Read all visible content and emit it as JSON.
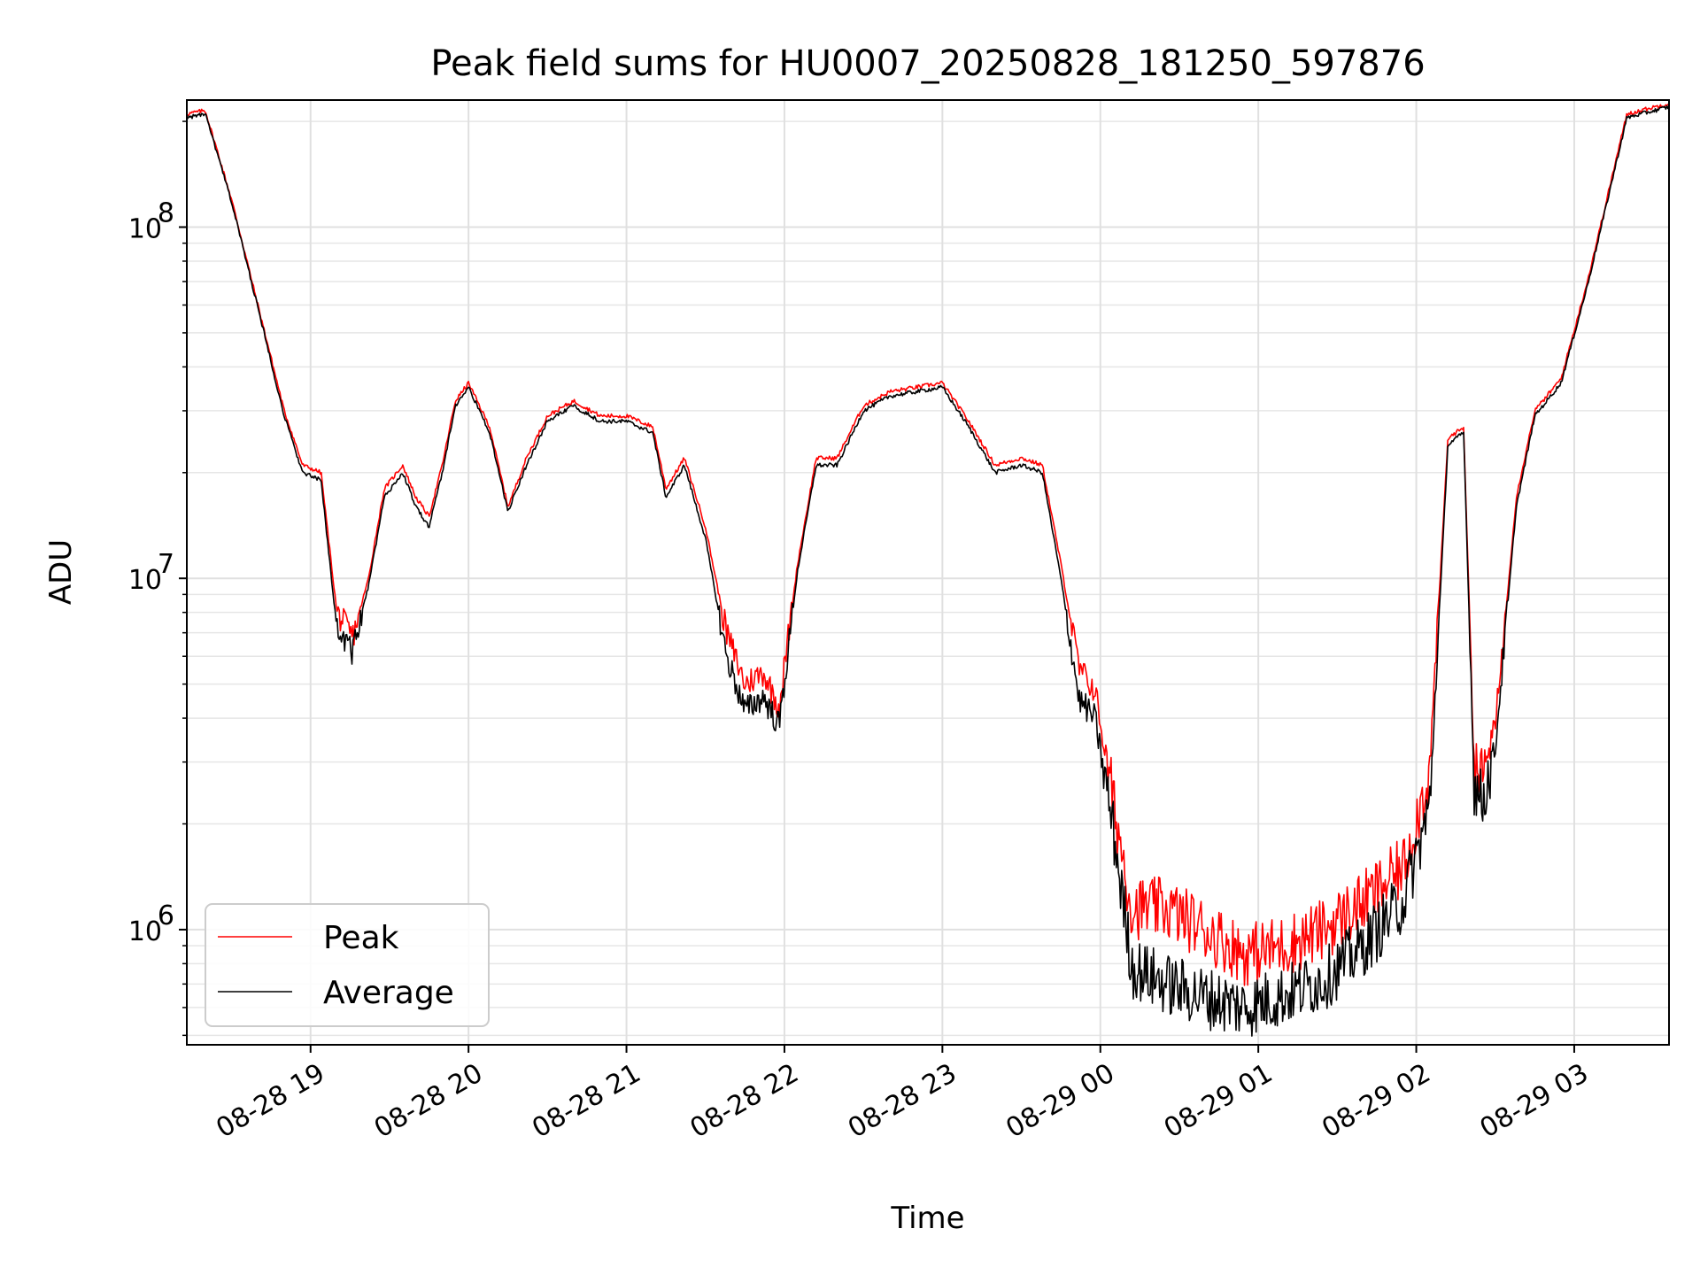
{
  "chart_data": {
    "type": "line",
    "title": "Peak field sums for HU0007_20250828_181250_597876",
    "xlabel": "Time",
    "ylabel": "ADU",
    "yscale": "log",
    "ylim": [
      470000,
      230000000
    ],
    "xlim": [
      "08-28 18:13",
      "08-29 03:36"
    ],
    "grid": true,
    "legend": {
      "placement": "lower-left",
      "entries": [
        "Peak",
        "Average"
      ]
    },
    "x_tick_labels": [
      "08-28 19",
      "08-28 20",
      "08-28 21",
      "08-28 22",
      "08-28 23",
      "08-29 00",
      "08-29 01",
      "08-29 02",
      "08-29 03"
    ],
    "y_tick_labels": [
      {
        "base": "10",
        "exp": "6",
        "value": 1000000
      },
      {
        "base": "10",
        "exp": "7",
        "value": 10000000
      },
      {
        "base": "10",
        "exp": "8",
        "value": 100000000
      }
    ],
    "colors": {
      "Peak": "#ff0000",
      "Average": "#000000"
    },
    "x": [
      "08-28 18:13",
      "08-28 18:20",
      "08-28 18:30",
      "08-28 18:40",
      "08-28 18:50",
      "08-28 18:57",
      "08-28 19:04",
      "08-28 19:10",
      "08-28 19:16",
      "08-28 19:22",
      "08-28 19:28",
      "08-28 19:35",
      "08-28 19:40",
      "08-28 19:45",
      "08-28 19:50",
      "08-28 19:55",
      "08-28 20:00",
      "08-28 20:08",
      "08-28 20:15",
      "08-28 20:22",
      "08-28 20:30",
      "08-28 20:40",
      "08-28 20:50",
      "08-28 21:00",
      "08-28 21:10",
      "08-28 21:15",
      "08-28 21:22",
      "08-28 21:30",
      "08-28 21:38",
      "08-28 21:45",
      "08-28 21:52",
      "08-28 21:58",
      "08-28 22:05",
      "08-28 22:12",
      "08-28 22:20",
      "08-28 22:30",
      "08-28 22:40",
      "08-28 22:50",
      "08-28 23:00",
      "08-28 23:10",
      "08-28 23:20",
      "08-28 23:30",
      "08-28 23:38",
      "08-28 23:45",
      "08-28 23:52",
      "08-28 23:58",
      "08-29 00:05",
      "08-29 00:12",
      "08-29 00:25",
      "08-29 00:40",
      "08-29 00:55",
      "08-29 01:10",
      "08-29 01:25",
      "08-29 01:40",
      "08-29 01:55",
      "08-29 02:05",
      "08-29 02:12",
      "08-29 02:18",
      "08-29 02:22",
      "08-29 02:25",
      "08-29 02:30",
      "08-29 02:38",
      "08-29 02:45",
      "08-29 02:55",
      "08-29 03:05",
      "08-29 03:20",
      "08-29 03:36"
    ],
    "series": [
      {
        "name": "Peak",
        "values": [
          210000000,
          215000000,
          120000000,
          60000000,
          30000000,
          21000000,
          20000000,
          8000000,
          6800000,
          10000000,
          18000000,
          21000000,
          17000000,
          15000000,
          21000000,
          32000000,
          36000000,
          27000000,
          16000000,
          22000000,
          29000000,
          32000000,
          29000000,
          29000000,
          27000000,
          18000000,
          22000000,
          14000000,
          7000000,
          5000000,
          5400000,
          4300000,
          11000000,
          22000000,
          22000000,
          31000000,
          34000000,
          35000000,
          36000000,
          28000000,
          21000000,
          22000000,
          21000000,
          11000000,
          5500000,
          4800000,
          2300000,
          1150000,
          1150000,
          1000000,
          850000,
          900000,
          1000000,
          1200000,
          1500000,
          2800000,
          25000000,
          27000000,
          3000000,
          2700000,
          3800000,
          17000000,
          30000000,
          37000000,
          70000000,
          210000000,
          225000000
        ]
      },
      {
        "name": "Average",
        "values": [
          205000000,
          210000000,
          118000000,
          59000000,
          29000000,
          20000000,
          19000000,
          7200000,
          6200000,
          9500000,
          17000000,
          20000000,
          16000000,
          14000000,
          20000000,
          31000000,
          35000000,
          26000000,
          15500000,
          21000000,
          28000000,
          31000000,
          28000000,
          28000000,
          26000000,
          17000000,
          21000000,
          13000000,
          6000000,
          4200000,
          4600000,
          3800000,
          10500000,
          21000000,
          21000000,
          30000000,
          33000000,
          34000000,
          35000000,
          27000000,
          20000000,
          21000000,
          20000000,
          10000000,
          4500000,
          4000000,
          1900000,
          780000,
          700000,
          640000,
          600000,
          650000,
          720000,
          900000,
          1200000,
          2200000,
          24000000,
          26000000,
          2600000,
          2300000,
          3300000,
          16000000,
          29000000,
          36000000,
          68000000,
          205000000,
          220000000
        ]
      }
    ]
  }
}
